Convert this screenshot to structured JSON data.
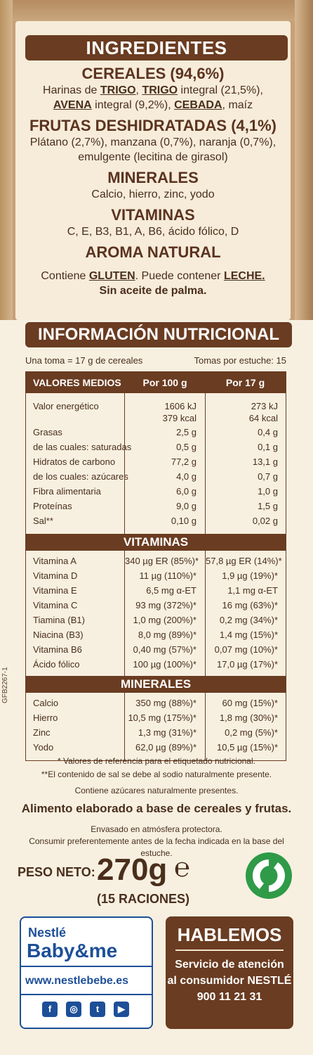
{
  "ingredients": {
    "title": "INGREDIENTES",
    "cereales_head": "CEREALES (94,6%)",
    "cereales_l1a": "Harinas de ",
    "cereales_trigo1": "TRIGO",
    "cereales_sep1": ", ",
    "cereales_trigo2": "TRIGO",
    "cereales_l1b": " integral (21,5%),",
    "cereales_avena": "AVENA",
    "cereales_l2a": " integral (9,2%), ",
    "cereales_cebada": "CEBADA",
    "cereales_l2b": ", maíz",
    "frutas_head": "FRUTAS DESHIDRATADAS (4,1%)",
    "frutas_l1": "Plátano (2,7%), manzana (0,7%), naranja (0,7%),",
    "frutas_l2": "emulgente (lecitina de girasol)",
    "minerales_head": "MINERALES",
    "minerales_text": "Calcio, hierro, zinc, yodo",
    "vitaminas_head": "VITAMINAS",
    "vitaminas_text": "C, E, B3, B1, A, B6, ácido fólico, D",
    "aroma_head": "AROMA NATURAL",
    "contiene_a": "Contiene ",
    "contiene_gluten": "GLUTEN",
    "contiene_b": ". Puede contener ",
    "contiene_leche": "LECHE.",
    "palma": "Sin aceite de palma."
  },
  "nutrition": {
    "title": "INFORMACIÓN NUTRICIONAL",
    "toma": "Una toma = 17 g de cereales",
    "tomas_estuche": "Tomas por estuche: 15",
    "headers": [
      "VALORES MEDIOS",
      "Por 100 g",
      "Por 17 g"
    ],
    "energia_label": "Valor energético",
    "energia_100_kj": "1606 kJ",
    "energia_100_kcal": "379 kcal",
    "energia_17_kj": "273 kJ",
    "energia_17_kcal": "64 kcal",
    "rows": [
      [
        "Grasas",
        "2,5 g",
        "0,4 g"
      ],
      [
        "de las cuales: saturadas",
        "0,5 g",
        "0,1 g"
      ],
      [
        "Hidratos de carbono",
        "77,2 g",
        "13,1 g"
      ],
      [
        "de los cuales: azúcares",
        "4,0 g",
        "0,7 g"
      ],
      [
        "Fibra alimentaria",
        "6,0 g",
        "1,0 g"
      ],
      [
        "Proteínas",
        "9,0 g",
        "1,5 g"
      ],
      [
        "Sal**",
        "0,10 g",
        "0,02 g"
      ]
    ],
    "vitaminas_band": "VITAMINAS",
    "vitaminas": [
      [
        "Vitamina A",
        "340 µg ER (85%)*",
        "57,8 µg ER (14%)*"
      ],
      [
        "Vitamina D",
        "11 µg (110%)*",
        "1,9 µg (19%)*"
      ],
      [
        "Vitamina E",
        "6,5 mg α-ET",
        "1,1 mg α-ET"
      ],
      [
        "Vitamina C",
        "93 mg (372%)*",
        "16 mg (63%)*"
      ],
      [
        "Tiamina (B1)",
        "1,0 mg (200%)*",
        "0,2 mg (34%)*"
      ],
      [
        "Niacina (B3)",
        "8,0 mg (89%)*",
        "1,4 mg (15%)*"
      ],
      [
        "Vitamina B6",
        "0,40 mg (57%)*",
        "0,07 mg (10%)*"
      ],
      [
        "Ácido fólico",
        "100 µg (100%)*",
        "17,0 µg (17%)*"
      ]
    ],
    "minerales_band": "MINERALES",
    "minerales": [
      [
        "Calcio",
        "350 mg (88%)*",
        "60 mg (15%)*"
      ],
      [
        "Hierro",
        "10,5 mg (175%)*",
        "1,8 mg (30%)*"
      ],
      [
        "Zinc",
        "1,3 mg (31%)*",
        "0,2 mg (5%)*"
      ],
      [
        "Yodo",
        "62,0 µg (89%)*",
        "10,5 µg (15%)*"
      ]
    ]
  },
  "code": "GFB2267-1",
  "notes": {
    "ref": "* Valores de referencia para el etiquetado nutricional.",
    "sal": "**El contenido de sal se debe al sodio naturalmente presente.",
    "azucares": "Contiene azúcares naturalmente presentes."
  },
  "alimento": "Alimento elaborado a base de cereales y frutas.",
  "envasado": "Envasado en atmósfera protectora.",
  "consumir": "Consumir preferentemente antes de la fecha indicada en la base del estuche.",
  "peso": {
    "label": "PESO NETO:",
    "value": "270g",
    "e_mark": "℮",
    "raciones": "(15 RACIONES)"
  },
  "brand": {
    "nestle": "Nestlé",
    "baby": "Baby&me",
    "web": "www.nestlebebe.es",
    "social": [
      "f",
      "◎",
      "t",
      "▶"
    ]
  },
  "contact": {
    "title": "HABLEMOS",
    "line1": "Servicio de atención",
    "line2": "al consumidor NESTLÉ",
    "phone": "900 11 21 31"
  },
  "colors": {
    "brown": "#6a3c21",
    "cream": "#f6ecd9",
    "blue": "#1d4f98",
    "green": "#2f9a48"
  }
}
